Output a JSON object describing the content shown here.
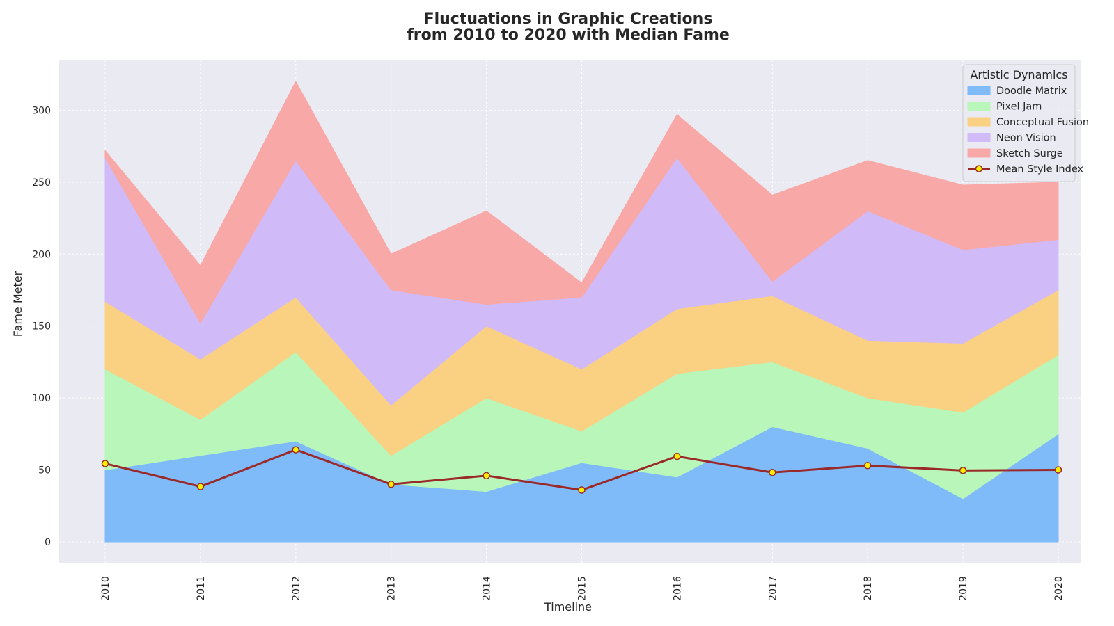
{
  "chart_data": {
    "type": "area",
    "stacked": true,
    "title": "Fluctuations in Graphic Creations",
    "subtitle": "from 2010 to 2020 with Median Fame",
    "xlabel": "Timeline",
    "ylabel": "Fame Meter",
    "x": [
      "2010",
      "2011",
      "2012",
      "2013",
      "2014",
      "2015",
      "2016",
      "2017",
      "2018",
      "2019",
      "2020"
    ],
    "ylim": [
      -15,
      335
    ],
    "yticks": [
      0,
      50,
      100,
      150,
      200,
      250,
      300
    ],
    "grid": true,
    "legend": {
      "title": "Artistic Dynamics",
      "position": "top-right"
    },
    "series": [
      {
        "name": "Doodle Matrix",
        "color": "#7fbbf9",
        "values": [
          50,
          60,
          70,
          40,
          35,
          55,
          45,
          80,
          65,
          30,
          75
        ]
      },
      {
        "name": "Pixel Jam",
        "color": "#b9f6b9",
        "values": [
          70,
          25,
          62,
          20,
          65,
          22,
          72,
          45,
          35,
          60,
          55
        ]
      },
      {
        "name": "Conceptual Fusion",
        "color": "#fad183",
        "values": [
          47,
          42,
          38,
          35,
          50,
          43,
          45,
          46,
          40,
          48,
          45
        ]
      },
      {
        "name": "Neon Vision",
        "color": "#d1baf8",
        "values": [
          100,
          25,
          95,
          80,
          15,
          50,
          105,
          10,
          90,
          65,
          35
        ]
      },
      {
        "name": "Sketch Surge",
        "color": "#f9a8a8",
        "values": [
          5,
          40,
          55,
          25,
          65,
          10,
          30,
          60,
          35,
          45,
          40
        ]
      }
    ],
    "line": {
      "name": "Mean Style Index",
      "color": "#9a2a2a",
      "marker_fill": "#ffee00",
      "marker_edge": "#9a2a2a",
      "values": [
        54.4,
        38.4,
        64,
        40,
        46,
        36,
        59.4,
        48.2,
        53,
        49.6,
        50
      ]
    },
    "colors": {
      "plot_background": "#eaeaf2",
      "grid": "#ffffff"
    }
  }
}
